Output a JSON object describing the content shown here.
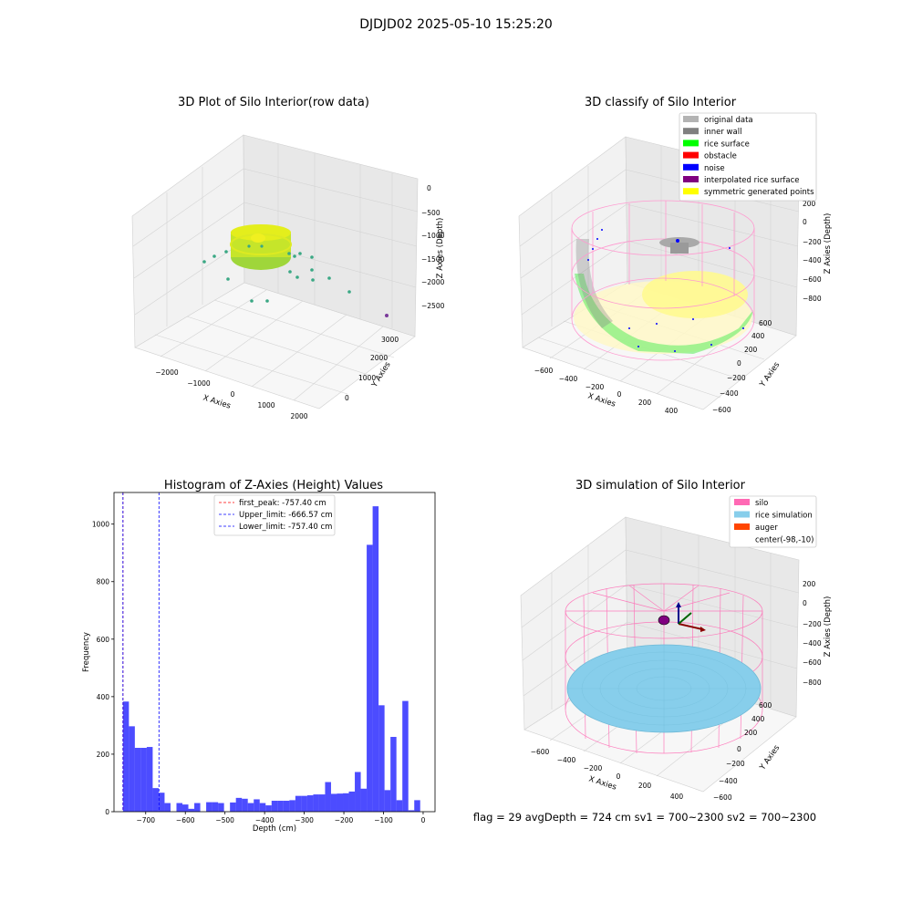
{
  "figure": {
    "title": "DJDJD02 2025-05-10 15:25:20",
    "footer": "flag = 29  avgDepth = 724 cm  sv1 = 700~2300  sv2 = 700~2300"
  },
  "panels": {
    "raw": {
      "title": "3D Plot of Silo Interior(row data)",
      "xlabel": "X Axies",
      "ylabel": "Y Axies",
      "zlabel": "Z Axies (Depth)",
      "xticks": [
        "−2000",
        "−1000",
        "0",
        "1000",
        "2000"
      ],
      "yticks": [
        "0",
        "1000",
        "2000",
        "3000"
      ],
      "zticks": [
        "0",
        "−500",
        "−1000",
        "−1500",
        "−2000",
        "−2500"
      ]
    },
    "classify": {
      "title": "3D classify of Silo Interior",
      "xlabel": "X Axies",
      "ylabel": "Y Axies",
      "zlabel": "Z Axies (Depth)",
      "xticks": [
        "−600",
        "−400",
        "−200",
        "0",
        "200",
        "400"
      ],
      "yticks": [
        "−600",
        "−400",
        "−200",
        "0",
        "200",
        "400",
        "600"
      ],
      "zticks": [
        "200",
        "0",
        "−200",
        "−400",
        "−600",
        "−800"
      ],
      "legend": [
        {
          "label": "original data",
          "color": "#b3b3b3"
        },
        {
          "label": "inner wall",
          "color": "#808080"
        },
        {
          "label": "rice surface",
          "color": "#00ff00"
        },
        {
          "label": "obstacle",
          "color": "#ff0000"
        },
        {
          "label": "noise",
          "color": "#0000ff"
        },
        {
          "label": "interpolated rice surface",
          "color": "#800080"
        },
        {
          "label": "symmetric generated points",
          "color": "#ffff00"
        }
      ]
    },
    "simulation": {
      "title": "3D simulation of Silo Interior",
      "xlabel": "X Axies",
      "ylabel": "Y Axies",
      "zlabel": "Z Axies (Depth)",
      "xticks": [
        "−600",
        "−400",
        "−200",
        "0",
        "200",
        "400"
      ],
      "yticks": [
        "−600",
        "−400",
        "−200",
        "0",
        "200",
        "400",
        "600"
      ],
      "zticks": [
        "200",
        "0",
        "−200",
        "−400",
        "−600",
        "−800"
      ],
      "legend": [
        {
          "label": "silo",
          "color": "#ff69b4"
        },
        {
          "label": "rice simulation",
          "color": "#87ceeb"
        },
        {
          "label": "auger",
          "color": "#ff4500"
        },
        {
          "label": "center(-98,-10)",
          "color": "#ffffff"
        }
      ]
    }
  },
  "chart_data": [
    {
      "type": "scatter",
      "title": "3D Plot of Silo Interior(row data)",
      "xlabel": "X Axies",
      "ylabel": "Y Axies",
      "zlabel": "Z Axies (Depth)",
      "xlim": [
        -2500,
        2500
      ],
      "ylim": [
        -500,
        3500
      ],
      "zlim": [
        -2700,
        100
      ],
      "grid": true
    },
    {
      "type": "scatter",
      "title": "3D classify of Silo Interior",
      "xlabel": "X Axies",
      "ylabel": "Y Axies",
      "zlabel": "Z Axies (Depth)",
      "xlim": [
        -700,
        500
      ],
      "ylim": [
        -700,
        700
      ],
      "zlim": [
        -900,
        300
      ],
      "legend": [
        "original data",
        "inner wall",
        "rice surface",
        "obstacle",
        "noise",
        "interpolated rice surface",
        "symmetric generated points"
      ],
      "legend_position": "top-right",
      "grid": true
    },
    {
      "type": "bar",
      "title": "Histogram of Z-Axies (Height) Values",
      "xlabel": "Depth (cm)",
      "ylabel": "Frequency",
      "xlim": [
        -780,
        30
      ],
      "ylim": [
        0,
        1110
      ],
      "bin_start": -757.4,
      "bin_width": 15.0,
      "values": [
        383,
        297,
        222,
        222,
        225,
        82,
        66,
        30,
        0,
        30,
        25,
        10,
        30,
        0,
        33,
        33,
        30,
        0,
        32,
        48,
        45,
        30,
        43,
        30,
        22,
        38,
        38,
        38,
        40,
        55,
        55,
        57,
        60,
        60,
        103,
        62,
        63,
        64,
        70,
        138,
        80,
        928,
        1062,
        370,
        75,
        260,
        40,
        385,
        5,
        40
      ],
      "xticks": [
        -700,
        -600,
        -500,
        -400,
        -300,
        -200,
        -100,
        0
      ],
      "yticks": [
        0,
        200,
        400,
        600,
        800,
        1000
      ],
      "vlines": [
        {
          "label": "first_peak: -757.40 cm",
          "x": -757.4,
          "color": "#ff0000"
        },
        {
          "label": "Upper_limit: -666.57 cm",
          "x": -666.57,
          "color": "#0000ff"
        },
        {
          "label": "Lower_limit: -757.40 cm",
          "x": -757.4,
          "color": "#0000ff"
        }
      ],
      "legend_position": "top-center",
      "bar_color": "#0000ff"
    },
    {
      "type": "scatter",
      "title": "3D simulation of Silo Interior",
      "xlabel": "X Axies",
      "ylabel": "Y Axies",
      "zlabel": "Z Axies (Depth)",
      "xlim": [
        -700,
        500
      ],
      "ylim": [
        -700,
        700
      ],
      "zlim": [
        -900,
        300
      ],
      "legend": [
        "silo",
        "rice simulation",
        "auger",
        "center(-98,-10)"
      ],
      "legend_position": "top-right",
      "grid": true
    }
  ]
}
